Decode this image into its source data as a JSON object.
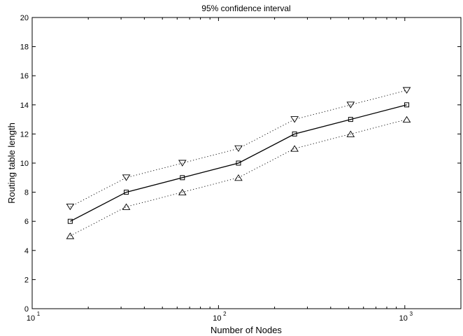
{
  "chart_data": {
    "type": "line",
    "title": "95% confidence interval",
    "xlabel": "Number of Nodes",
    "ylabel": "Routing table length",
    "xscale": "log",
    "xlim": [
      10,
      2000
    ],
    "ylim": [
      0,
      20
    ],
    "yticks": [
      "0",
      "2",
      "4",
      "6",
      "8",
      "10",
      "12",
      "14",
      "16",
      "18",
      "20"
    ],
    "xticks": [
      {
        "value": 10,
        "base": "10",
        "exp": "1"
      },
      {
        "value": 100,
        "base": "10",
        "exp": "2"
      },
      {
        "value": 1000,
        "base": "10",
        "exp": "3"
      }
    ],
    "grid": false,
    "x": [
      16,
      32,
      64,
      128,
      256,
      512,
      1024
    ],
    "series": [
      {
        "role": "mean",
        "marker": "square",
        "line": "solid",
        "values": [
          6,
          8,
          9,
          10,
          12,
          13,
          14
        ]
      },
      {
        "role": "upper",
        "marker": "triangle-down",
        "line": "dotted",
        "values": [
          7,
          9,
          10,
          11,
          13,
          14,
          15
        ]
      },
      {
        "role": "lower",
        "marker": "triangle-up",
        "line": "dotted",
        "values": [
          5,
          7,
          8,
          9,
          11,
          12,
          13
        ]
      }
    ]
  }
}
